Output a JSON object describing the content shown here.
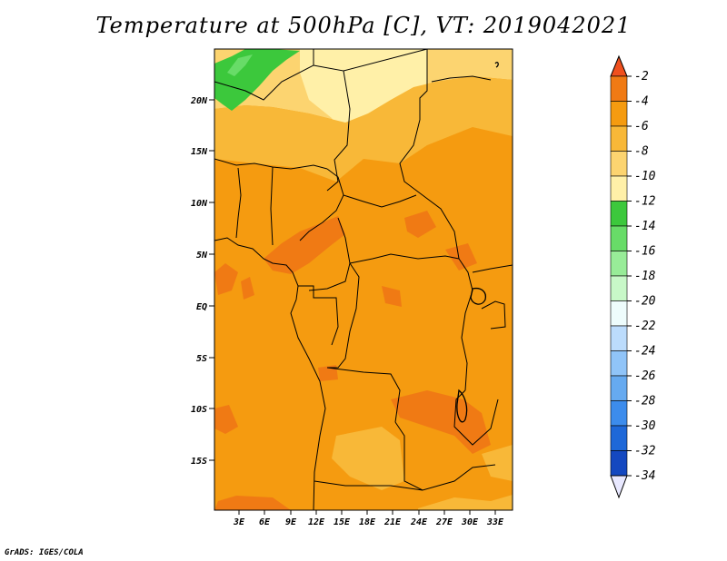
{
  "title": "Temperature at 500hPa [C], VT: 2019042021",
  "credit": "GrADS: IGES/COLA",
  "map": {
    "lat_labels": [
      "20N",
      "15N",
      "10N",
      "5N",
      "EQ",
      "5S",
      "10S",
      "15S"
    ],
    "lon_labels": [
      "3E",
      "6E",
      "9E",
      "12E",
      "15E",
      "18E",
      "21E",
      "24E",
      "27E",
      "30E",
      "33E"
    ]
  },
  "colorbar": {
    "labels": [
      "-2",
      "-4",
      "-6",
      "-8",
      "-10",
      "-12",
      "-14",
      "-16",
      "-18",
      "-20",
      "-22",
      "-24",
      "-26",
      "-28",
      "-30",
      "-32",
      "-34"
    ],
    "colors": [
      "#f4602a",
      "#f07a14",
      "#f59b10",
      "#f8b838",
      "#fcd470",
      "#fff0a8",
      "#3cc83c",
      "#68dc68",
      "#98ec98",
      "#c8f8c8",
      "#eefcfc",
      "#bcdcfc",
      "#90c4f8",
      "#66aaf0",
      "#3c8cec",
      "#1e68d8",
      "#1448c0",
      "#0c30a0",
      "#0a1a70"
    ],
    "top_color": "#f0501e",
    "bottom_color": "#e8e8ff"
  }
}
